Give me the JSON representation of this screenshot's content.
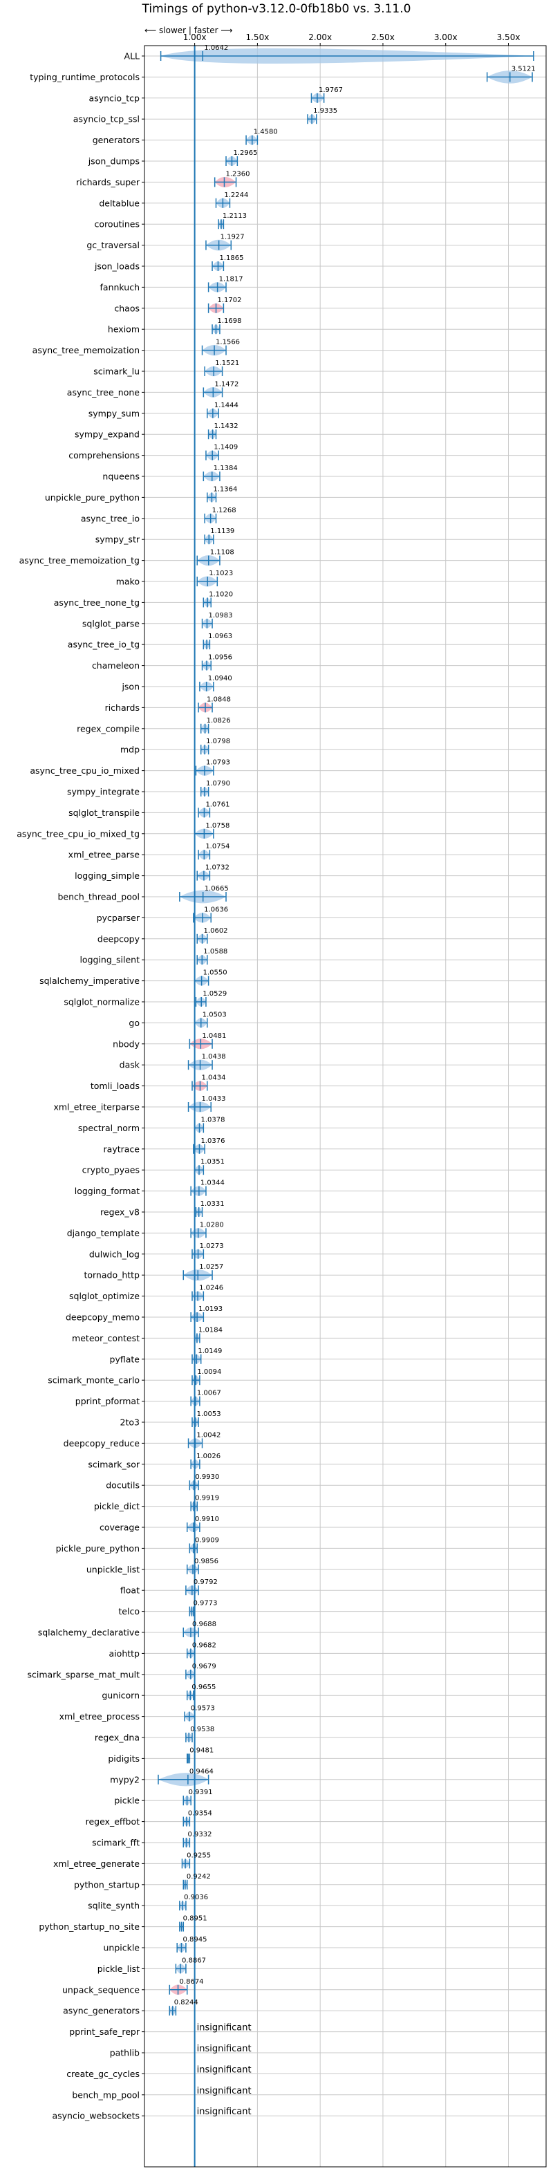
{
  "chart_data": {
    "type": "violin",
    "title": "Timings of python-v3.12.0-0fb18b0 vs. 3.11.0",
    "direction_label": "⟵ slower | faster ⟶",
    "x_ticks": [
      "1.00x",
      "1.50x",
      "2.00x",
      "2.50x",
      "3.00x",
      "3.50x"
    ],
    "x_tick_values": [
      1.0,
      1.5,
      2.0,
      2.5,
      3.0,
      3.5
    ],
    "xlim": [
      0.6,
      3.8
    ],
    "reference_line": 1.0,
    "grid": true,
    "insignificant_label": "insignificant",
    "colors": {
      "normal": "#1f77b4",
      "fill": "#a6c8e8",
      "outlier": "#f4a6b4"
    },
    "benchmarks": [
      {
        "name": "ALL",
        "mean": 1.0642,
        "label": "1.0642",
        "lo": 0.73,
        "hi": 3.7
      },
      {
        "name": "typing_runtime_protocols",
        "mean": 3.5121,
        "label": "3.5121",
        "lo": 3.33,
        "hi": 3.69
      },
      {
        "name": "asyncio_tcp",
        "mean": 1.9767,
        "label": "1.9767",
        "lo": 1.93,
        "hi": 2.03
      },
      {
        "name": "asyncio_tcp_ssl",
        "mean": 1.9335,
        "label": "1.9335",
        "lo": 1.9,
        "hi": 1.97
      },
      {
        "name": "generators",
        "mean": 1.458,
        "label": "1.4580",
        "lo": 1.41,
        "hi": 1.5
      },
      {
        "name": "json_dumps",
        "mean": 1.2965,
        "label": "1.2965",
        "lo": 1.25,
        "hi": 1.34
      },
      {
        "name": "richards_super",
        "mean": 1.236,
        "label": "1.2360",
        "lo": 1.16,
        "hi": 1.33,
        "outlier": true
      },
      {
        "name": "deltablue",
        "mean": 1.2244,
        "label": "1.2244",
        "lo": 1.17,
        "hi": 1.28
      },
      {
        "name": "coroutines",
        "mean": 1.2113,
        "label": "1.2113",
        "lo": 1.19,
        "hi": 1.23
      },
      {
        "name": "gc_traversal",
        "mean": 1.1927,
        "label": "1.1927",
        "lo": 1.09,
        "hi": 1.29
      },
      {
        "name": "json_loads",
        "mean": 1.1865,
        "label": "1.1865",
        "lo": 1.14,
        "hi": 1.23
      },
      {
        "name": "fannkuch",
        "mean": 1.1817,
        "label": "1.1817",
        "lo": 1.11,
        "hi": 1.25
      },
      {
        "name": "chaos",
        "mean": 1.1702,
        "label": "1.1702",
        "lo": 1.11,
        "hi": 1.23,
        "outlier": true
      },
      {
        "name": "hexiom",
        "mean": 1.1698,
        "label": "1.1698",
        "lo": 1.14,
        "hi": 1.2
      },
      {
        "name": "async_tree_memoization",
        "mean": 1.1566,
        "label": "1.1566",
        "lo": 1.06,
        "hi": 1.25
      },
      {
        "name": "scimark_lu",
        "mean": 1.1521,
        "label": "1.1521",
        "lo": 1.08,
        "hi": 1.22
      },
      {
        "name": "async_tree_none",
        "mean": 1.1472,
        "label": "1.1472",
        "lo": 1.07,
        "hi": 1.22
      },
      {
        "name": "sympy_sum",
        "mean": 1.1444,
        "label": "1.1444",
        "lo": 1.1,
        "hi": 1.19
      },
      {
        "name": "sympy_expand",
        "mean": 1.1432,
        "label": "1.1432",
        "lo": 1.11,
        "hi": 1.17
      },
      {
        "name": "comprehensions",
        "mean": 1.1409,
        "label": "1.1409",
        "lo": 1.09,
        "hi": 1.19
      },
      {
        "name": "nqueens",
        "mean": 1.1384,
        "label": "1.1384",
        "lo": 1.07,
        "hi": 1.2
      },
      {
        "name": "unpickle_pure_python",
        "mean": 1.1364,
        "label": "1.1364",
        "lo": 1.1,
        "hi": 1.17
      },
      {
        "name": "async_tree_io",
        "mean": 1.1268,
        "label": "1.1268",
        "lo": 1.08,
        "hi": 1.17
      },
      {
        "name": "sympy_str",
        "mean": 1.1139,
        "label": "1.1139",
        "lo": 1.08,
        "hi": 1.15
      },
      {
        "name": "async_tree_memoization_tg",
        "mean": 1.1108,
        "label": "1.1108",
        "lo": 1.02,
        "hi": 1.2
      },
      {
        "name": "mako",
        "mean": 1.1023,
        "label": "1.1023",
        "lo": 1.02,
        "hi": 1.18
      },
      {
        "name": "async_tree_none_tg",
        "mean": 1.102,
        "label": "1.1020",
        "lo": 1.07,
        "hi": 1.13
      },
      {
        "name": "sqlglot_parse",
        "mean": 1.0983,
        "label": "1.0983",
        "lo": 1.06,
        "hi": 1.14
      },
      {
        "name": "async_tree_io_tg",
        "mean": 1.0963,
        "label": "1.0963",
        "lo": 1.07,
        "hi": 1.12
      },
      {
        "name": "chameleon",
        "mean": 1.0956,
        "label": "1.0956",
        "lo": 1.06,
        "hi": 1.13
      },
      {
        "name": "json",
        "mean": 1.094,
        "label": "1.0940",
        "lo": 1.04,
        "hi": 1.15
      },
      {
        "name": "richards",
        "mean": 1.0848,
        "label": "1.0848",
        "lo": 1.03,
        "hi": 1.14,
        "outlier": true
      },
      {
        "name": "regex_compile",
        "mean": 1.0826,
        "label": "1.0826",
        "lo": 1.05,
        "hi": 1.11
      },
      {
        "name": "mdp",
        "mean": 1.0798,
        "label": "1.0798",
        "lo": 1.05,
        "hi": 1.11
      },
      {
        "name": "async_tree_cpu_io_mixed",
        "mean": 1.0793,
        "label": "1.0793",
        "lo": 1.01,
        "hi": 1.15
      },
      {
        "name": "sympy_integrate",
        "mean": 1.079,
        "label": "1.0790",
        "lo": 1.05,
        "hi": 1.11
      },
      {
        "name": "sqlglot_transpile",
        "mean": 1.0761,
        "label": "1.0761",
        "lo": 1.03,
        "hi": 1.12
      },
      {
        "name": "async_tree_cpu_io_mixed_tg",
        "mean": 1.0758,
        "label": "1.0758",
        "lo": 1.0,
        "hi": 1.15
      },
      {
        "name": "xml_etree_parse",
        "mean": 1.0754,
        "label": "1.0754",
        "lo": 1.03,
        "hi": 1.12
      },
      {
        "name": "logging_simple",
        "mean": 1.0732,
        "label": "1.0732",
        "lo": 1.02,
        "hi": 1.12
      },
      {
        "name": "bench_thread_pool",
        "mean": 1.0665,
        "label": "1.0665",
        "lo": 0.88,
        "hi": 1.25
      },
      {
        "name": "pycparser",
        "mean": 1.0636,
        "label": "1.0636",
        "lo": 0.99,
        "hi": 1.13
      },
      {
        "name": "deepcopy",
        "mean": 1.0602,
        "label": "1.0602",
        "lo": 1.02,
        "hi": 1.1
      },
      {
        "name": "logging_silent",
        "mean": 1.0588,
        "label": "1.0588",
        "lo": 1.02,
        "hi": 1.1
      },
      {
        "name": "sqlalchemy_imperative",
        "mean": 1.055,
        "label": "1.0550",
        "lo": 1.0,
        "hi": 1.11
      },
      {
        "name": "sqlglot_normalize",
        "mean": 1.0529,
        "label": "1.0529",
        "lo": 1.01,
        "hi": 1.09
      },
      {
        "name": "go",
        "mean": 1.0503,
        "label": "1.0503",
        "lo": 1.0,
        "hi": 1.1
      },
      {
        "name": "nbody",
        "mean": 1.0481,
        "label": "1.0481",
        "lo": 0.96,
        "hi": 1.14,
        "outlier": true
      },
      {
        "name": "dask",
        "mean": 1.0438,
        "label": "1.0438",
        "lo": 0.95,
        "hi": 1.14
      },
      {
        "name": "tomli_loads",
        "mean": 1.0434,
        "label": "1.0434",
        "lo": 0.98,
        "hi": 1.1,
        "outlier": true
      },
      {
        "name": "xml_etree_iterparse",
        "mean": 1.0433,
        "label": "1.0433",
        "lo": 0.95,
        "hi": 1.13
      },
      {
        "name": "spectral_norm",
        "mean": 1.0378,
        "label": "1.0378",
        "lo": 1.0,
        "hi": 1.07
      },
      {
        "name": "raytrace",
        "mean": 1.0376,
        "label": "1.0376",
        "lo": 0.99,
        "hi": 1.08
      },
      {
        "name": "crypto_pyaes",
        "mean": 1.0351,
        "label": "1.0351",
        "lo": 1.0,
        "hi": 1.07
      },
      {
        "name": "logging_format",
        "mean": 1.0344,
        "label": "1.0344",
        "lo": 0.97,
        "hi": 1.09
      },
      {
        "name": "regex_v8",
        "mean": 1.0331,
        "label": "1.0331",
        "lo": 1.01,
        "hi": 1.06
      },
      {
        "name": "django_template",
        "mean": 1.028,
        "label": "1.0280",
        "lo": 0.97,
        "hi": 1.09
      },
      {
        "name": "dulwich_log",
        "mean": 1.0273,
        "label": "1.0273",
        "lo": 0.98,
        "hi": 1.07
      },
      {
        "name": "tornado_http",
        "mean": 1.0257,
        "label": "1.0257",
        "lo": 0.91,
        "hi": 1.14
      },
      {
        "name": "sqlglot_optimize",
        "mean": 1.0246,
        "label": "1.0246",
        "lo": 0.98,
        "hi": 1.07
      },
      {
        "name": "deepcopy_memo",
        "mean": 1.0193,
        "label": "1.0193",
        "lo": 0.97,
        "hi": 1.07
      },
      {
        "name": "meteor_contest",
        "mean": 1.0184,
        "label": "1.0184",
        "lo": 1.0,
        "hi": 1.04
      },
      {
        "name": "pyflate",
        "mean": 1.0149,
        "label": "1.0149",
        "lo": 0.98,
        "hi": 1.05
      },
      {
        "name": "scimark_monte_carlo",
        "mean": 1.0094,
        "label": "1.0094",
        "lo": 0.98,
        "hi": 1.04
      },
      {
        "name": "pprint_pformat",
        "mean": 1.0067,
        "label": "1.0067",
        "lo": 0.97,
        "hi": 1.04
      },
      {
        "name": "2to3",
        "mean": 1.0053,
        "label": "1.0053",
        "lo": 0.98,
        "hi": 1.03
      },
      {
        "name": "deepcopy_reduce",
        "mean": 1.0042,
        "label": "1.0042",
        "lo": 0.95,
        "hi": 1.06
      },
      {
        "name": "scimark_sor",
        "mean": 1.0026,
        "label": "1.0026",
        "lo": 0.97,
        "hi": 1.04
      },
      {
        "name": "docutils",
        "mean": 0.993,
        "label": "0.9930",
        "lo": 0.96,
        "hi": 1.03
      },
      {
        "name": "pickle_dict",
        "mean": 0.9919,
        "label": "0.9919",
        "lo": 0.97,
        "hi": 1.02
      },
      {
        "name": "coverage",
        "mean": 0.991,
        "label": "0.9910",
        "lo": 0.94,
        "hi": 1.04
      },
      {
        "name": "pickle_pure_python",
        "mean": 0.9909,
        "label": "0.9909",
        "lo": 0.96,
        "hi": 1.02
      },
      {
        "name": "unpickle_list",
        "mean": 0.9856,
        "label": "0.9856",
        "lo": 0.94,
        "hi": 1.03
      },
      {
        "name": "float",
        "mean": 0.9792,
        "label": "0.9792",
        "lo": 0.93,
        "hi": 1.03
      },
      {
        "name": "telco",
        "mean": 0.9773,
        "label": "0.9773",
        "lo": 0.96,
        "hi": 0.99
      },
      {
        "name": "sqlalchemy_declarative",
        "mean": 0.9688,
        "label": "0.9688",
        "lo": 0.91,
        "hi": 1.03
      },
      {
        "name": "aiohttp",
        "mean": 0.9682,
        "label": "0.9682",
        "lo": 0.94,
        "hi": 1.0
      },
      {
        "name": "scimark_sparse_mat_mult",
        "mean": 0.9679,
        "label": "0.9679",
        "lo": 0.93,
        "hi": 1.0
      },
      {
        "name": "gunicorn",
        "mean": 0.9655,
        "label": "0.9655",
        "lo": 0.94,
        "hi": 0.99
      },
      {
        "name": "xml_etree_process",
        "mean": 0.9573,
        "label": "0.9573",
        "lo": 0.92,
        "hi": 1.0
      },
      {
        "name": "regex_dna",
        "mean": 0.9538,
        "label": "0.9538",
        "lo": 0.93,
        "hi": 0.98
      },
      {
        "name": "pidigits",
        "mean": 0.9481,
        "label": "0.9481",
        "lo": 0.94,
        "hi": 0.96
      },
      {
        "name": "mypy2",
        "mean": 0.9464,
        "label": "0.9464",
        "lo": 0.71,
        "hi": 1.11
      },
      {
        "name": "pickle",
        "mean": 0.9391,
        "label": "0.9391",
        "lo": 0.91,
        "hi": 0.97
      },
      {
        "name": "regex_effbot",
        "mean": 0.9354,
        "label": "0.9354",
        "lo": 0.91,
        "hi": 0.96
      },
      {
        "name": "scimark_fft",
        "mean": 0.9332,
        "label": "0.9332",
        "lo": 0.91,
        "hi": 0.96
      },
      {
        "name": "xml_etree_generate",
        "mean": 0.9255,
        "label": "0.9255",
        "lo": 0.9,
        "hi": 0.96
      },
      {
        "name": "python_startup",
        "mean": 0.9242,
        "label": "0.9242",
        "lo": 0.91,
        "hi": 0.94
      },
      {
        "name": "sqlite_synth",
        "mean": 0.9036,
        "label": "0.9036",
        "lo": 0.88,
        "hi": 0.93
      },
      {
        "name": "python_startup_no_site",
        "mean": 0.8951,
        "label": "0.8951",
        "lo": 0.88,
        "hi": 0.91
      },
      {
        "name": "unpickle",
        "mean": 0.8945,
        "label": "0.8945",
        "lo": 0.86,
        "hi": 0.93
      },
      {
        "name": "pickle_list",
        "mean": 0.8867,
        "label": "0.8867",
        "lo": 0.85,
        "hi": 0.93
      },
      {
        "name": "unpack_sequence",
        "mean": 0.8674,
        "label": "0.8674",
        "lo": 0.8,
        "hi": 0.94,
        "outlier": true
      },
      {
        "name": "async_generators",
        "mean": 0.8244,
        "label": "0.8244",
        "lo": 0.8,
        "hi": 0.85
      },
      {
        "name": "pprint_safe_repr",
        "insignificant": true
      },
      {
        "name": "pathlib",
        "insignificant": true
      },
      {
        "name": "create_gc_cycles",
        "insignificant": true
      },
      {
        "name": "bench_mp_pool",
        "insignificant": true
      },
      {
        "name": "asyncio_websockets",
        "insignificant": true
      }
    ]
  }
}
